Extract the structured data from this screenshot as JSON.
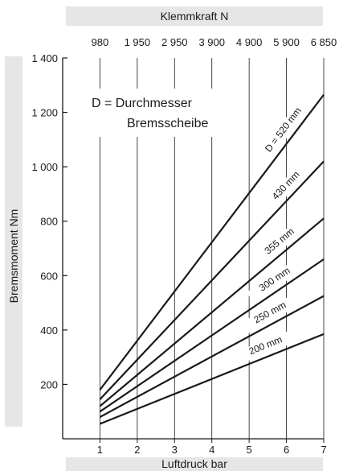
{
  "chart_data": {
    "type": "line",
    "xlabel": "Luftdruck bar",
    "ylabel": "Bremsmoment Nm",
    "x2label": "Klemmkraft N",
    "annotation": [
      "D = Durchmesser",
      "Bremsscheibe"
    ],
    "xlim": [
      0,
      7
    ],
    "ylim": [
      0,
      1400
    ],
    "x_ticks": [
      "1",
      "2",
      "3",
      "4",
      "5",
      "6",
      "7"
    ],
    "y_ticks": [
      "200",
      "400",
      "600",
      "800",
      "1 000",
      "1 200",
      "1 400"
    ],
    "x2_ticks": [
      "980",
      "1 950",
      "2 950",
      "3 900",
      "4 900",
      "5 900",
      "6 850"
    ],
    "grid": "vertical",
    "series": [
      {
        "name": "D = 520 mm",
        "x": [
          1,
          7
        ],
        "y": [
          180,
          1265
        ]
      },
      {
        "name": "430 mm",
        "x": [
          1,
          7
        ],
        "y": [
          145,
          1020
        ]
      },
      {
        "name": "355 mm",
        "x": [
          1,
          7
        ],
        "y": [
          120,
          810
        ]
      },
      {
        "name": "300 mm",
        "x": [
          1,
          7
        ],
        "y": [
          100,
          660
        ]
      },
      {
        "name": "250 mm",
        "x": [
          1,
          7
        ],
        "y": [
          80,
          525
        ]
      },
      {
        "name": "200 mm",
        "x": [
          1,
          7
        ],
        "y": [
          55,
          385
        ]
      }
    ],
    "colors": {
      "line": "#1a1a1a",
      "band": "#e6e6e6"
    }
  }
}
